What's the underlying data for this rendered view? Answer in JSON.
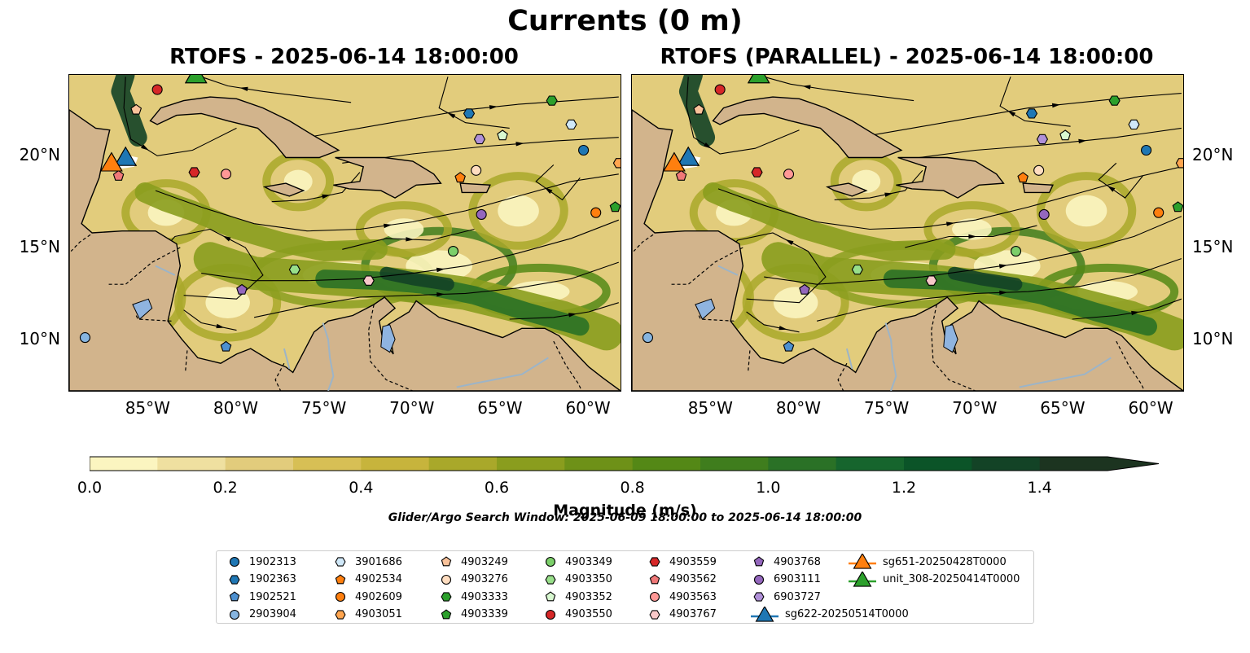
{
  "figure": {
    "title": "Currents (0 m)",
    "panel_titles": [
      "RTOFS - 2025-06-14 18:00:00",
      "RTOFS (PARALLEL) - 2025-06-14 18:00:00"
    ],
    "lon_ticks": [
      "85°W",
      "80°W",
      "75°W",
      "70°W",
      "65°W",
      "60°W"
    ],
    "lat_ticks": [
      "20°N",
      "15°N",
      "10°N"
    ],
    "colorbar_label": "Magnitude (m/s)",
    "colorbar_ticks": [
      "0.0",
      "0.2",
      "0.4",
      "0.6",
      "0.8",
      "1.0",
      "1.2",
      "1.4"
    ],
    "search_window": "Glider/Argo Search Window: 2025-06-09 18:00:00 to 2025-06-14 18:00:00"
  },
  "chart_data": {
    "type": "map",
    "variable": "Currents (0 m)",
    "lon_range": [
      -89.5,
      -58.2
    ],
    "lat_range": [
      7.2,
      24.4
    ],
    "colorbar": {
      "min": 0.0,
      "max": 1.5,
      "step": 0.1,
      "extend": "max",
      "colors": [
        "#fbf5c0",
        "#efe0a0",
        "#e2cc7c",
        "#d7bf55",
        "#c7b43c",
        "#a9a82a",
        "#8a9d1e",
        "#6e9118",
        "#548816",
        "#3f7d1d",
        "#2a7126",
        "#16652d",
        "#0b5428",
        "#134326",
        "#1c3420"
      ]
    },
    "series": [
      {
        "name": "1902313",
        "marker": "circle",
        "color": "#1f77b4",
        "lon": -60.3,
        "lat": 20.3
      },
      {
        "name": "1902363",
        "marker": "hexagon",
        "color": "#1f77b4",
        "lon": -66.8,
        "lat": 22.3
      },
      {
        "name": "1902521",
        "marker": "pentagon",
        "color": "#4d90d0",
        "lon": -80.6,
        "lat": 9.6
      },
      {
        "name": "2903904",
        "marker": "circle",
        "color": "#87b5e0",
        "lon": -88.6,
        "lat": 10.1
      },
      {
        "name": "3901686",
        "marker": "hexagon",
        "color": "#d0e8f8",
        "lon": -61.0,
        "lat": 21.7
      },
      {
        "name": "4902534",
        "marker": "pentagon",
        "color": "#ff7f0e",
        "lon": -67.3,
        "lat": 18.8
      },
      {
        "name": "4902609",
        "marker": "circle",
        "color": "#ff7f0e",
        "lon": -59.6,
        "lat": 16.9
      },
      {
        "name": "4903051",
        "marker": "hexagon",
        "color": "#ffa54f",
        "lon": -58.3,
        "lat": 19.6
      },
      {
        "name": "4903249",
        "marker": "pentagon",
        "color": "#f9c29a",
        "lon": -85.7,
        "lat": 22.5
      },
      {
        "name": "4903276",
        "marker": "circle",
        "color": "#ffddc0",
        "lon": -66.4,
        "lat": 19.2
      },
      {
        "name": "4903333",
        "marker": "hexagon",
        "color": "#2ca02c",
        "lon": -62.1,
        "lat": 23.0
      },
      {
        "name": "4903339",
        "marker": "pentagon",
        "color": "#2ca02c",
        "lon": -58.5,
        "lat": 17.2
      },
      {
        "name": "4903349",
        "marker": "circle",
        "color": "#7ccf6a",
        "lon": -67.7,
        "lat": 14.8
      },
      {
        "name": "4903350",
        "marker": "hexagon",
        "color": "#98df8a",
        "lon": -76.7,
        "lat": 13.8
      },
      {
        "name": "4903352",
        "marker": "pentagon",
        "color": "#d8f8d0",
        "lon": -64.9,
        "lat": 21.1
      },
      {
        "name": "4903550",
        "marker": "circle",
        "color": "#d62728",
        "lon": -84.5,
        "lat": 23.6
      },
      {
        "name": "4903559",
        "marker": "hexagon",
        "color": "#d62728",
        "lon": -82.4,
        "lat": 19.1
      },
      {
        "name": "4903562",
        "marker": "pentagon",
        "color": "#f07878",
        "lon": -86.7,
        "lat": 18.9
      },
      {
        "name": "4903563",
        "marker": "circle",
        "color": "#ff9896",
        "lon": -80.6,
        "lat": 19.0
      },
      {
        "name": "4903767",
        "marker": "hexagon",
        "color": "#f8c8c8",
        "lon": -72.5,
        "lat": 13.2
      },
      {
        "name": "4903768",
        "marker": "pentagon",
        "color": "#9467bd",
        "lon": -79.7,
        "lat": 12.7
      },
      {
        "name": "6903111",
        "marker": "circle",
        "color": "#9467bd",
        "lon": -66.1,
        "lat": 16.8
      },
      {
        "name": "6903727",
        "marker": "hexagon",
        "color": "#b090d8",
        "lon": -66.2,
        "lat": 20.9
      },
      {
        "name": "sg622-20250514T0000",
        "marker": "triangle",
        "color": "#1f77b4",
        "lon": -86.3,
        "lat": 19.8
      },
      {
        "name": "sg651-20250428T0000",
        "marker": "triangle",
        "color": "#ff7f0e",
        "lon": -87.1,
        "lat": 19.5
      },
      {
        "name": "unit_308-20250414T0000",
        "marker": "triangle",
        "color": "#2ca02c",
        "lon": -82.3,
        "lat": 24.3
      }
    ]
  }
}
